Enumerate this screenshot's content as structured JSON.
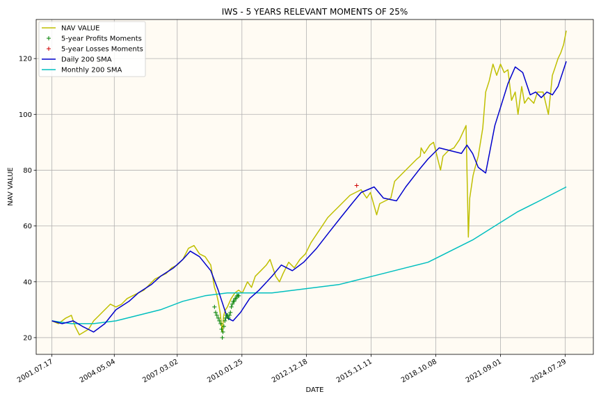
{
  "chart_data": {
    "type": "line",
    "title": "IWS - 5 YEARS RELEVANT MOMENTS OF 25%",
    "xlabel": "DATE",
    "ylabel": "NAV VALUE",
    "xlim": [
      "2000-11-01",
      "2025-11-01"
    ],
    "ylim": [
      14,
      134
    ],
    "yticks": [
      20,
      40,
      60,
      80,
      100,
      120
    ],
    "xticks": [
      "2001.07.17",
      "2004.05.04",
      "2007.03.02",
      "2010.01.25",
      "2012.12.18",
      "2015.11.11",
      "2018.10.08",
      "2021.09.01",
      "2024.07.29"
    ],
    "grid": true,
    "legend_position": "top-left",
    "background": "#fffbf3",
    "series": [
      {
        "name": "NAV VALUE",
        "color": "#bfbf00",
        "x": [
          "2001-07-17",
          "2001-11-01",
          "2002-03-01",
          "2002-06-01",
          "2002-08-01",
          "2002-10-10",
          "2003-03-11",
          "2003-06-01",
          "2003-09-01",
          "2003-12-01",
          "2004-03-01",
          "2004-06-01",
          "2004-09-01",
          "2004-12-01",
          "2005-03-01",
          "2005-06-01",
          "2005-09-01",
          "2005-12-01",
          "2006-03-01",
          "2006-06-01",
          "2006-09-01",
          "2006-12-01",
          "2007-03-01",
          "2007-06-01",
          "2007-09-01",
          "2007-12-01",
          "2008-03-01",
          "2008-06-01",
          "2008-09-01",
          "2008-11-01",
          "2008-12-01",
          "2009-01-01",
          "2009-02-01",
          "2009-03-09",
          "2009-04-01",
          "2009-05-01",
          "2009-06-01",
          "2009-08-01",
          "2009-10-01",
          "2009-12-01",
          "2010-02-01",
          "2010-04-26",
          "2010-07-01",
          "2010-09-01",
          "2010-12-01",
          "2011-03-01",
          "2011-05-01",
          "2011-08-01",
          "2011-10-03",
          "2011-12-01",
          "2012-03-01",
          "2012-06-01",
          "2012-09-01",
          "2012-12-01",
          "2013-03-01",
          "2013-06-01",
          "2013-09-01",
          "2013-12-01",
          "2014-03-01",
          "2014-06-01",
          "2014-09-01",
          "2014-12-01",
          "2015-03-01",
          "2015-06-01",
          "2015-09-01",
          "2015-11-01",
          "2016-02-11",
          "2016-04-01",
          "2016-07-01",
          "2016-10-01",
          "2016-12-01",
          "2017-03-01",
          "2017-06-01",
          "2017-09-01",
          "2017-12-01",
          "2018-01-26",
          "2018-02-09",
          "2018-04-01",
          "2018-07-01",
          "2018-09-01",
          "2018-12-24",
          "2019-02-01",
          "2019-05-01",
          "2019-08-01",
          "2019-11-01",
          "2020-02-15",
          "2020-03-23",
          "2020-04-15",
          "2020-06-08",
          "2020-07-01",
          "2020-09-01",
          "2020-11-15",
          "2021-01-01",
          "2021-03-01",
          "2021-05-01",
          "2021-07-01",
          "2021-09-01",
          "2021-11-01",
          "2022-01-01",
          "2022-03-01",
          "2022-05-01",
          "2022-06-16",
          "2022-08-15",
          "2022-10-01",
          "2022-12-01",
          "2023-03-01",
          "2023-05-01",
          "2023-07-31",
          "2023-10-27",
          "2023-12-31",
          "2024-02-01",
          "2024-04-01",
          "2024-05-15",
          "2024-07-01",
          "2024-08-15"
        ],
        "values": [
          26,
          25,
          27,
          28,
          24,
          21,
          23,
          26,
          28,
          30,
          32,
          31,
          32,
          34,
          35,
          36,
          37,
          39,
          41,
          42,
          43,
          45,
          46,
          48,
          52,
          53,
          50,
          49,
          46,
          38,
          36,
          33,
          29,
          22,
          28,
          30,
          31,
          34,
          36,
          37,
          36,
          40,
          38,
          42,
          44,
          46,
          48,
          42,
          40,
          43,
          47,
          45,
          48,
          50,
          54,
          57,
          60,
          63,
          65,
          67,
          69,
          71,
          72,
          73,
          70,
          72,
          64,
          68,
          69,
          70,
          76,
          78,
          80,
          82,
          84,
          85,
          88,
          86,
          89,
          90,
          80,
          85,
          87,
          88,
          91,
          96,
          56,
          70,
          78,
          80,
          85,
          95,
          108,
          112,
          118,
          114,
          118,
          115,
          116,
          105,
          108,
          100,
          110,
          104,
          106,
          104,
          108,
          108,
          100,
          114,
          116,
          120,
          122,
          125,
          130
        ]
      },
      {
        "name": "Daily 200 SMA",
        "color": "#0000cc",
        "x": [
          "2001-07-17",
          "2002-01-01",
          "2002-07-01",
          "2002-12-01",
          "2003-06-01",
          "2003-12-01",
          "2004-06-01",
          "2005-01-01",
          "2005-06-01",
          "2006-01-01",
          "2006-06-01",
          "2007-01-01",
          "2007-06-01",
          "2007-10-01",
          "2008-03-01",
          "2008-09-01",
          "2009-01-01",
          "2009-06-01",
          "2009-09-01",
          "2010-01-01",
          "2010-06-01",
          "2010-11-01",
          "2011-06-01",
          "2011-11-01",
          "2012-05-01",
          "2012-11-01",
          "2013-06-01",
          "2014-01-01",
          "2014-07-01",
          "2015-01-01",
          "2015-06-01",
          "2016-01-01",
          "2016-06-01",
          "2017-01-01",
          "2017-06-01",
          "2018-01-01",
          "2018-06-01",
          "2018-12-01",
          "2019-06-01",
          "2019-12-01",
          "2020-03-01",
          "2020-06-01",
          "2020-09-01",
          "2021-01-01",
          "2021-06-01",
          "2022-01-01",
          "2022-05-01",
          "2022-09-01",
          "2023-01-01",
          "2023-04-01",
          "2023-07-01",
          "2023-10-01",
          "2024-01-01",
          "2024-04-01",
          "2024-08-15"
        ],
        "values": [
          26,
          25,
          26,
          24,
          22,
          25,
          30,
          33,
          36,
          39,
          42,
          45,
          48,
          51,
          49,
          44,
          37,
          27,
          26,
          29,
          34,
          37,
          42,
          46,
          44,
          47,
          52,
          58,
          63,
          68,
          72,
          74,
          70,
          69,
          74,
          80,
          84,
          88,
          87,
          86,
          89,
          86,
          81,
          79,
          96,
          111,
          117,
          115,
          107,
          108,
          106,
          108,
          107,
          110,
          119
        ]
      },
      {
        "name": "Monthly 200 SMA",
        "color": "#00bfbf",
        "x": [
          "2001-07-17",
          "2002-06-01",
          "2003-06-01",
          "2004-06-01",
          "2005-06-01",
          "2006-06-01",
          "2007-06-01",
          "2008-06-01",
          "2009-06-01",
          "2010-06-01",
          "2011-06-01",
          "2012-06-01",
          "2013-06-01",
          "2014-06-01",
          "2015-06-01",
          "2016-06-01",
          "2017-06-01",
          "2018-06-01",
          "2019-06-01",
          "2020-06-01",
          "2021-06-01",
          "2022-06-01",
          "2023-06-01",
          "2024-08-15"
        ],
        "values": [
          26,
          25,
          25,
          26,
          28,
          30,
          33,
          35,
          36,
          36,
          36,
          37,
          38,
          39,
          41,
          43,
          45,
          47,
          51,
          55,
          60,
          65,
          69,
          74
        ]
      }
    ],
    "markers": [
      {
        "name": "5-year Profits Moments",
        "color": "#008000",
        "symbol": "+",
        "x": [
          "2008-11-01",
          "2008-11-20",
          "2008-12-10",
          "2009-01-01",
          "2009-01-20",
          "2009-02-10",
          "2009-02-25",
          "2009-03-09",
          "2009-03-20",
          "2009-04-05",
          "2009-04-20",
          "2009-05-05",
          "2009-05-20",
          "2009-06-05",
          "2009-06-20",
          "2009-07-05",
          "2009-07-20",
          "2009-08-05",
          "2009-08-20",
          "2009-09-05",
          "2009-09-20",
          "2009-10-05",
          "2009-10-20",
          "2009-11-05",
          "2009-11-20",
          "2009-12-05"
        ],
        "values": [
          31,
          29,
          28,
          27,
          26,
          25,
          23,
          20,
          22,
          24,
          26,
          27,
          28,
          28,
          27,
          28,
          29,
          31,
          32,
          33,
          33,
          34,
          34,
          35,
          35,
          35
        ]
      },
      {
        "name": "5-year Losses Moments",
        "color": "#d00000",
        "symbol": "+",
        "x": [
          "2015-03-20"
        ],
        "values": [
          74.5
        ]
      }
    ]
  }
}
